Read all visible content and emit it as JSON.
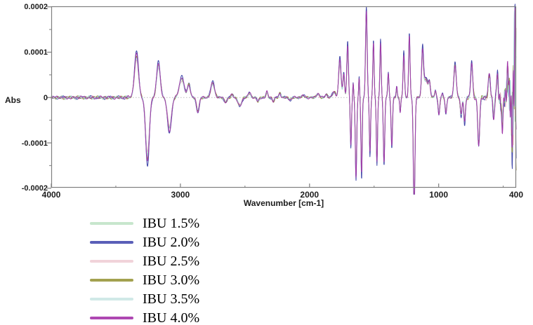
{
  "chart_data": {
    "type": "line",
    "title": "",
    "xlabel": "Wavenumber [cm-1]",
    "ylabel": "Abs",
    "grid": "dotted zero-line only",
    "legend_position": "below plot, left-aligned column",
    "x_axis": {
      "min": 400,
      "max": 4000,
      "reversed": true,
      "major_ticks": [
        4000,
        3000,
        2000,
        1000,
        400
      ],
      "major_tick_labels": [
        "4000",
        "3000",
        "2000",
        "1000",
        "400"
      ],
      "minor_ticks": [
        3500,
        2500,
        1500,
        500
      ]
    },
    "y_axis": {
      "min": -0.0002,
      "max": 0.0002,
      "major_ticks": [
        0.0002,
        0.0001,
        0,
        -0.0001,
        -0.0002
      ],
      "major_tick_labels": [
        "0.0002",
        "0.0001",
        "0",
        "-0.0001",
        "-0.0002"
      ],
      "minor_ticks": [
        0.00015,
        5e-05,
        -5e-05,
        -0.00015
      ]
    },
    "series": [
      {
        "name": "IBU 1.5%",
        "color": "#9ed2ad",
        "legend_color": "#c7e6cd",
        "amplitude_scale": 0.93,
        "seed": 1
      },
      {
        "name": "IBU 2.0%",
        "color": "#4046a8",
        "legend_color": "#5a5fb8",
        "amplitude_scale": 1.12,
        "seed": 2
      },
      {
        "name": "IBU 2.5%",
        "color": "#e2b3c1",
        "legend_color": "#f1d3da",
        "amplitude_scale": 0.9,
        "seed": 3
      },
      {
        "name": "IBU 3.0%",
        "color": "#94933f",
        "legend_color": "#a3a14f",
        "amplitude_scale": 1.0,
        "seed": 4
      },
      {
        "name": "IBU 3.5%",
        "color": "#a8dadb",
        "legend_color": "#d0e9e7",
        "amplitude_scale": 0.96,
        "seed": 5
      },
      {
        "name": "IBU 4.0%",
        "color": "#a139a9",
        "legend_color": "#ae47b2",
        "amplitude_scale": 1.05,
        "seed": 6
      }
    ],
    "peak_format": [
      "wavenumber_cm-1",
      "absorbance",
      "gaussian_width_cm-1"
    ],
    "spectrum_peaks": [
      [
        3340,
        9.2e-05,
        22
      ],
      [
        3255,
        -0.000135,
        20
      ],
      [
        3170,
        7.2e-05,
        20
      ],
      [
        3085,
        -7e-05,
        22
      ],
      [
        2990,
        4.2e-05,
        26
      ],
      [
        2935,
        2.8e-05,
        16
      ],
      [
        2865,
        -3e-05,
        15
      ],
      [
        2750,
        3.2e-05,
        20
      ],
      [
        2650,
        -1e-05,
        15
      ],
      [
        2600,
        7e-06,
        12
      ],
      [
        2540,
        -1.8e-05,
        20
      ],
      [
        2465,
        1e-05,
        14
      ],
      [
        2400,
        -8e-06,
        12
      ],
      [
        2330,
        1.2e-05,
        10
      ],
      [
        2280,
        -9e-06,
        10
      ],
      [
        2230,
        1e-05,
        10
      ],
      [
        2150,
        -5e-06,
        14
      ],
      [
        2050,
        4e-06,
        18
      ],
      [
        1935,
        8e-06,
        16
      ],
      [
        1870,
        7e-06,
        12
      ],
      [
        1810,
        1.2e-05,
        18
      ],
      [
        1765,
        8e-05,
        13
      ],
      [
        1735,
        5e-05,
        9
      ],
      [
        1705,
        0.00011,
        9
      ],
      [
        1680,
        -0.0001,
        7
      ],
      [
        1662,
        3e-05,
        5
      ],
      [
        1640,
        -0.000165,
        8
      ],
      [
        1616,
        4e-05,
        5
      ],
      [
        1597,
        -0.00016,
        7
      ],
      [
        1560,
        0.00018,
        9
      ],
      [
        1532,
        -0.000115,
        7
      ],
      [
        1505,
        0.000115,
        7
      ],
      [
        1478,
        -0.000135,
        7
      ],
      [
        1450,
        0.000115,
        7
      ],
      [
        1423,
        -0.000135,
        8
      ],
      [
        1390,
        5e-05,
        7
      ],
      [
        1363,
        -0.0001,
        8
      ],
      [
        1325,
        2.2e-05,
        6
      ],
      [
        1298,
        -3e-05,
        6
      ],
      [
        1270,
        9e-05,
        8
      ],
      [
        1227,
        0.00013,
        8
      ],
      [
        1190,
        -0.000235,
        9
      ],
      [
        1125,
        8.5e-05,
        10
      ],
      [
        1100,
        4e-05,
        28
      ],
      [
        1071,
        2.2e-05,
        9
      ],
      [
        1025,
        1.5e-05,
        8
      ],
      [
        998,
        -3.5e-05,
        9
      ],
      [
        971,
        8e-06,
        7
      ],
      [
        944,
        -3.2e-05,
        9
      ],
      [
        873,
        7e-05,
        13
      ],
      [
        826,
        -3.8e-05,
        9
      ],
      [
        799,
        -5.2e-05,
        9
      ],
      [
        744,
        7.2e-05,
        11
      ],
      [
        690,
        -0.0001,
        11
      ],
      [
        608,
        4.8e-05,
        11
      ],
      [
        574,
        -4.5e-05,
        8
      ],
      [
        546,
        4.8e-05,
        8
      ],
      [
        508,
        -5.8e-05,
        9
      ],
      [
        465,
        5.5e-05,
        8
      ],
      [
        432,
        -7.5e-05,
        7
      ],
      [
        412,
        0.00011,
        6
      ]
    ]
  }
}
